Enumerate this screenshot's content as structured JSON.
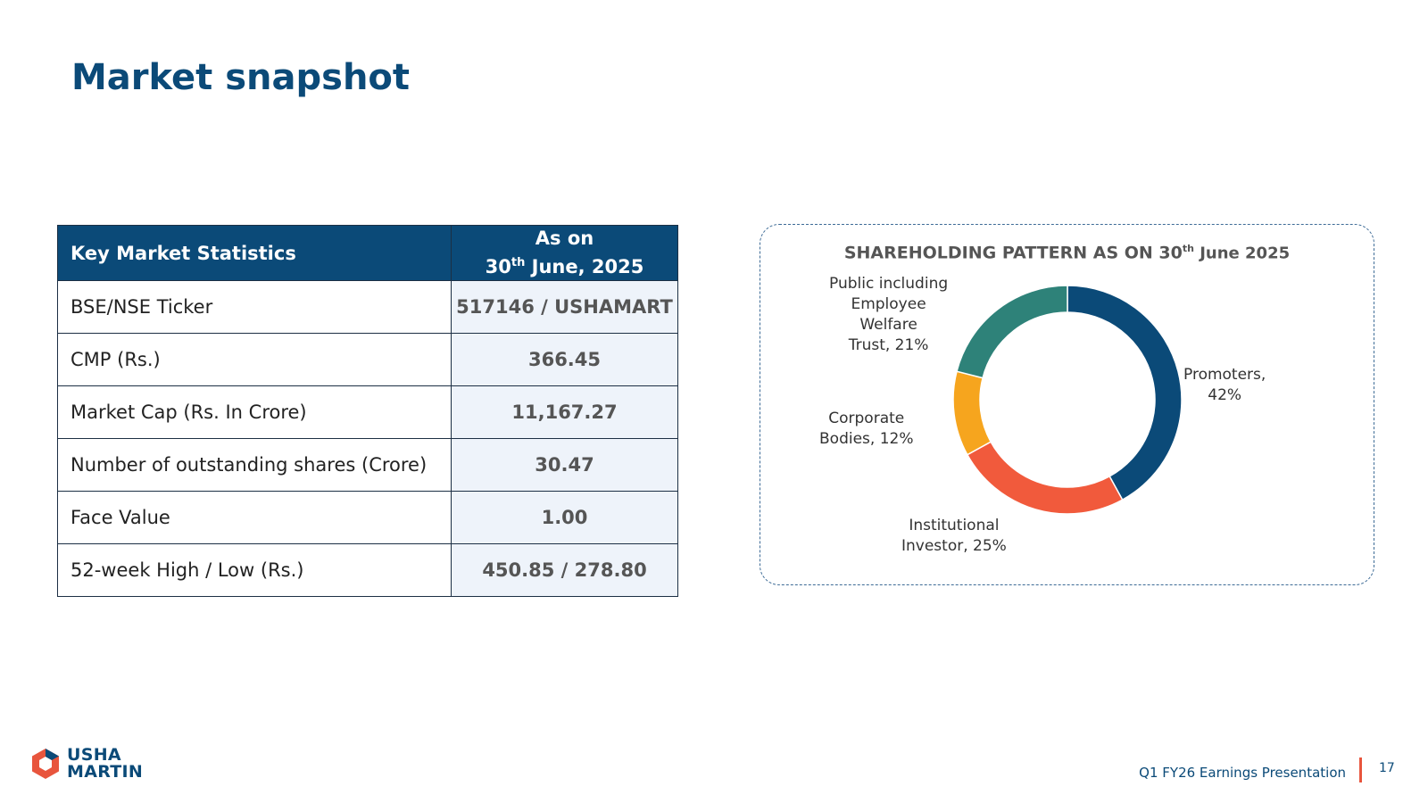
{
  "page": {
    "title": "Market snapshot",
    "footer_text": "Q1 FY26 Earnings Presentation",
    "page_number": "17",
    "logo_line1": "USHA",
    "logo_line2": "MARTIN"
  },
  "stats_table": {
    "header_left": "Key Market Statistics",
    "header_right_line1": "As on",
    "header_right_day": "30",
    "header_right_sup": "th",
    "header_right_rest": " June, 2025",
    "rows": [
      {
        "label": "BSE/NSE Ticker",
        "value": "517146 / USHAMART"
      },
      {
        "label": "CMP (Rs.)",
        "value": "366.45"
      },
      {
        "label": "Market Cap (Rs. In Crore)",
        "value": "11,167.27"
      },
      {
        "label": "Number of outstanding shares (Crore)",
        "value": "30.47"
      },
      {
        "label": "Face Value",
        "value": "1.00"
      },
      {
        "label": "52-week High / Low (Rs.)",
        "value": "450.85 / 278.80"
      }
    ]
  },
  "chart_title_main": "SHAREHOLDING PATTERN AS ON 30",
  "chart_title_sup": "th",
  "chart_title_tail": " June 2025",
  "slice_labels": {
    "promoters": [
      "Promoters,",
      "42%"
    ],
    "institutional": [
      "Institutional",
      "Investor, 25%"
    ],
    "corporate": [
      "Corporate",
      "Bodies, 12%"
    ],
    "public": [
      "Public including",
      "Employee",
      "Welfare",
      "Trust, 21%"
    ]
  },
  "chart_data": {
    "type": "pie",
    "donut": true,
    "title": "SHAREHOLDING PATTERN AS ON 30th June 2025",
    "categories": [
      "Promoters",
      "Institutional Investor",
      "Corporate Bodies",
      "Public including Employee Welfare Trust"
    ],
    "values": [
      42,
      25,
      12,
      21
    ],
    "unit": "%",
    "colors": [
      "#0b4a78",
      "#f15a3c",
      "#f6a51e",
      "#2e8279"
    ],
    "legend": "none"
  }
}
